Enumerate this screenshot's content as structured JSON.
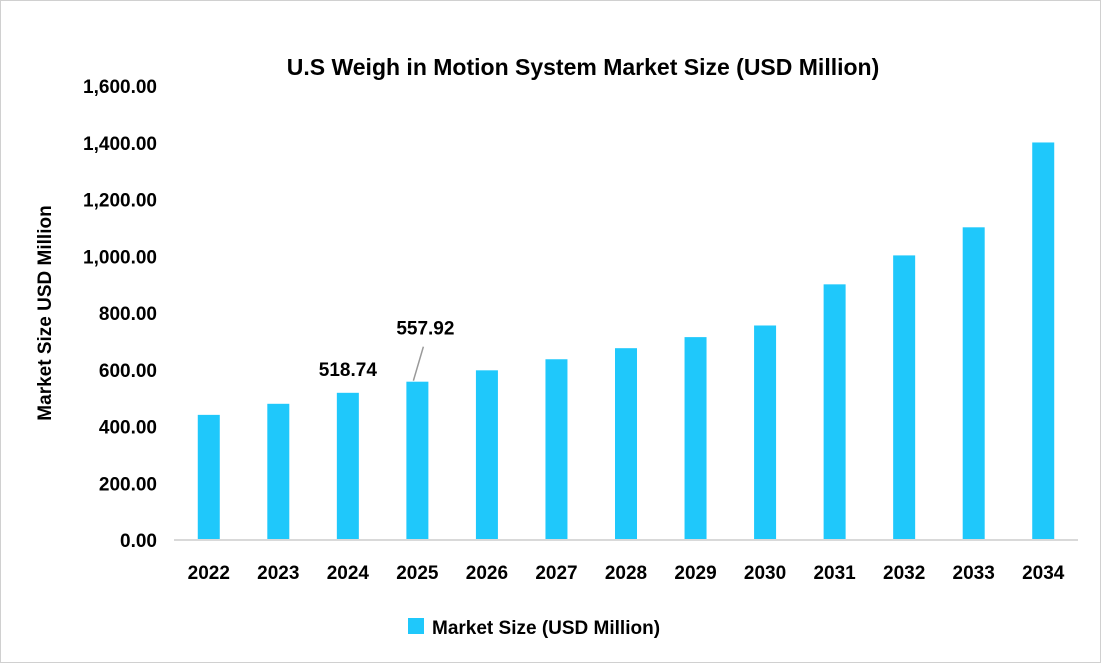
{
  "chart_data": {
    "type": "bar",
    "title": "U.S Weigh in Motion System Market Size (USD Million)",
    "xlabel": "",
    "ylabel": "Market Size USD Million",
    "ylim": [
      0,
      1600
    ],
    "yticks": [
      "0.00",
      "200.00",
      "400.00",
      "600.00",
      "800.00",
      "1,000.00",
      "1,200.00",
      "1,400.00",
      "1,600.00"
    ],
    "grid": false,
    "legend_position": "bottom",
    "categories": [
      "2022",
      "2023",
      "2024",
      "2025",
      "2026",
      "2027",
      "2028",
      "2029",
      "2030",
      "2031",
      "2032",
      "2033",
      "2034"
    ],
    "series": [
      {
        "name": "Market Size (USD Million)",
        "color": "#1FC8FB",
        "values": [
          441,
          480,
          518.74,
          557.92,
          598,
          637,
          676,
          715,
          756,
          901,
          1003,
          1102,
          1401
        ]
      }
    ],
    "data_labels": [
      {
        "category": "2024",
        "text": "518.74"
      },
      {
        "category": "2025",
        "text": "557.92"
      }
    ]
  }
}
